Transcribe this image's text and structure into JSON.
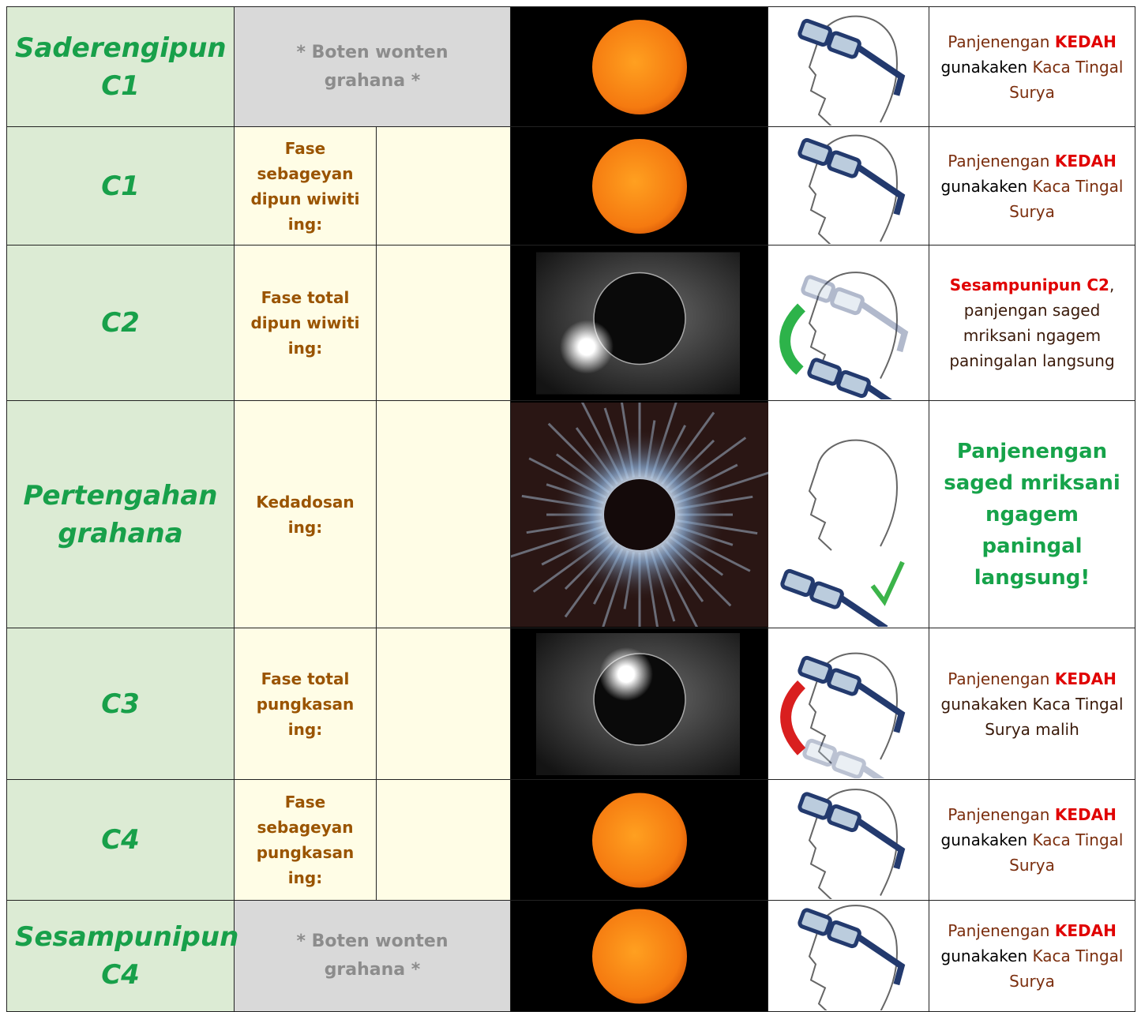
{
  "table": {
    "rows": [
      {
        "phase": "Saderengipun C1",
        "description": "* Boten wonten grahana *",
        "instruction": [
          {
            "text": "Panjenengan ",
            "color": "#7b2e0e",
            "bold": false
          },
          {
            "text": "KEDAH",
            "color": "#e00000",
            "bold": true
          },
          {
            "text": " gunakaken ",
            "color": "#000000",
            "bold": false
          },
          {
            "text": "Kaca Tingal Surya",
            "color": "#7b2e0e",
            "bold": false
          }
        ]
      },
      {
        "phase": "C1",
        "description": "Fase sebageyan dipun wiwiti ing:",
        "instruction": [
          {
            "text": "Panjenengan ",
            "color": "#7b2e0e",
            "bold": false
          },
          {
            "text": "KEDAH",
            "color": "#e00000",
            "bold": true
          },
          {
            "text": " gunakaken ",
            "color": "#000000",
            "bold": false
          },
          {
            "text": "Kaca Tingal Surya",
            "color": "#7b2e0e",
            "bold": false
          }
        ]
      },
      {
        "phase": "C2",
        "description": "Fase total dipun wiwiti ing:",
        "instruction": [
          {
            "text": "Sesampunipun C2",
            "color": "#e00000",
            "bold": true
          },
          {
            "text": ", panjengan saged mriksani ngagem paningalan langsung",
            "color": "#3a1a0a",
            "bold": false
          }
        ]
      },
      {
        "phase": "Pertengahan grahana",
        "description": "Kedadosan ing:",
        "instruction": [
          {
            "text": "Panjenengan saged mriksani ngagem paningal langsung!",
            "color": "#16a34a",
            "bold": true
          }
        ]
      },
      {
        "phase": "C3",
        "description": "Fase total pungkasan ing:",
        "instruction": [
          {
            "text": "Panjenengan ",
            "color": "#7b2e0e",
            "bold": false
          },
          {
            "text": "KEDAH",
            "color": "#e00000",
            "bold": true
          },
          {
            "text": " gunakaken Kaca Tingal Surya malih",
            "color": "#3a1a0a",
            "bold": false
          }
        ]
      },
      {
        "phase": "C4",
        "description": "Fase sebageyan pungkasan ing:",
        "instruction": [
          {
            "text": "Panjenengan ",
            "color": "#7b2e0e",
            "bold": false
          },
          {
            "text": "KEDAH",
            "color": "#e00000",
            "bold": true
          },
          {
            "text": " gunakaken ",
            "color": "#000000",
            "bold": false
          },
          {
            "text": "Kaca Tingal Surya",
            "color": "#7b2e0e",
            "bold": false
          }
        ]
      },
      {
        "phase": "Sesampunipun C4",
        "description": "* Boten wonten grahana *",
        "instruction": [
          {
            "text": "Panjenengan ",
            "color": "#7b2e0e",
            "bold": false
          },
          {
            "text": "KEDAH",
            "color": "#e00000",
            "bold": true
          },
          {
            "text": " gunakaken ",
            "color": "#000000",
            "bold": false
          },
          {
            "text": "Kaca Tingal Surya",
            "color": "#7b2e0e",
            "bold": false
          }
        ]
      }
    ]
  }
}
